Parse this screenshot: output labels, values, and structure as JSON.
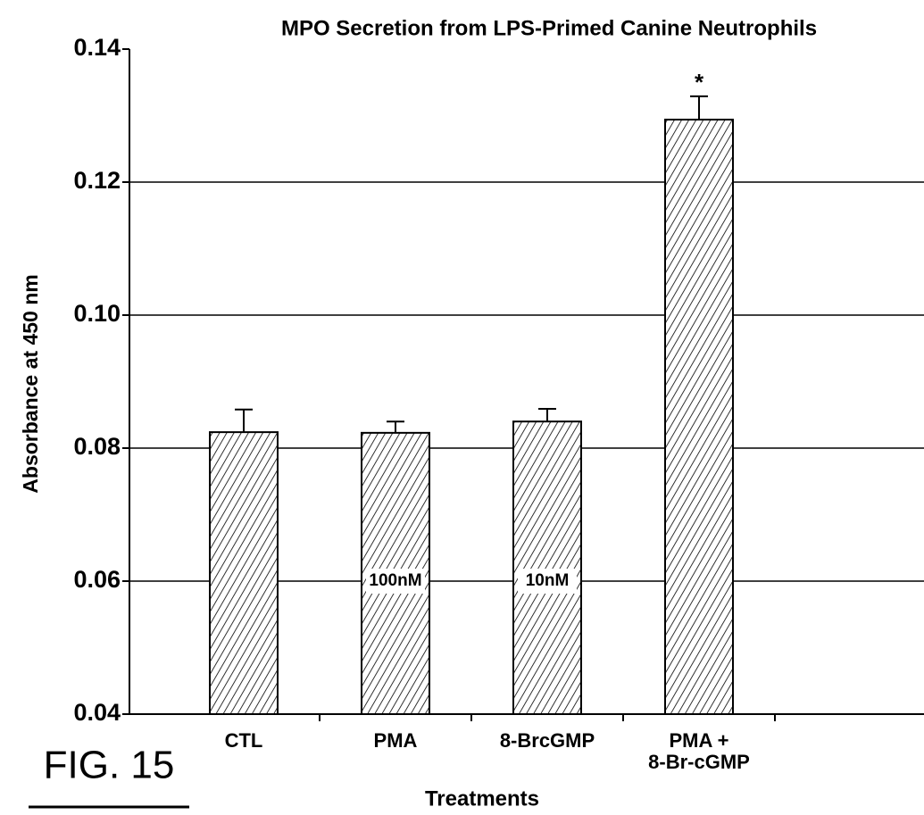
{
  "chart_data": {
    "type": "bar",
    "title": "MPO Secretion from LPS-Primed Canine Neutrophils",
    "y_label": "Absorbance at 450 nm",
    "x_label": "Treatments",
    "figure_label": "FIG. 15",
    "categories": [
      "CTL",
      "PMA",
      "8-BrcGMP",
      "PMA +\n8-Br-cGMP"
    ],
    "values": [
      0.0824,
      0.0823,
      0.084,
      0.1294
    ],
    "errors": [
      0.0034,
      0.0017,
      0.0019,
      0.0035
    ],
    "concentration_labels": [
      null,
      "100nM",
      "10nM",
      null
    ],
    "significance_labels": [
      null,
      null,
      null,
      "*"
    ],
    "color": "#000000",
    "ylim": [
      0.04,
      0.14
    ],
    "yticks": [
      0.04,
      0.06,
      0.08,
      {
        "value": 0.1,
        "label": "0.10"
      },
      0.12,
      0.14
    ],
    "grid": true
  }
}
